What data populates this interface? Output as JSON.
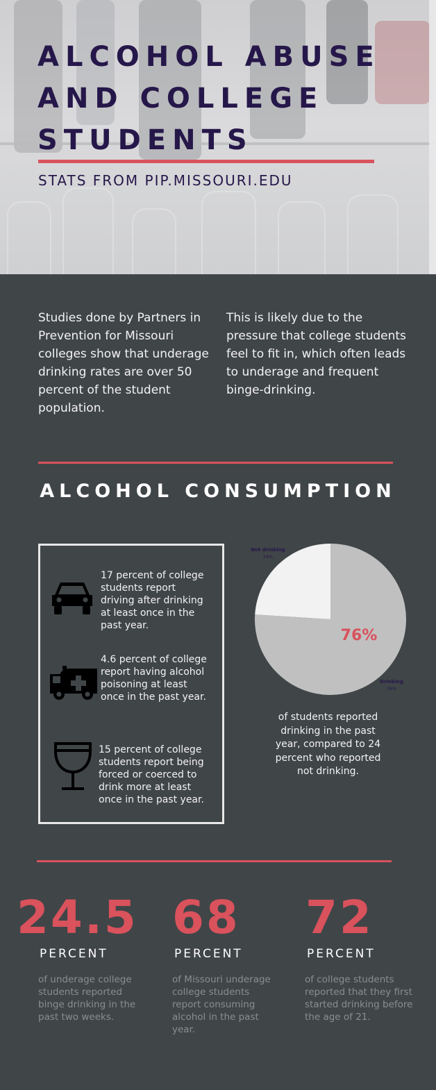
{
  "header": {
    "title": "ALCOHOL ABUSE AND COLLEGE STUDENTS",
    "subtitle": "STATS FROM PIP.MISSOURI.EDU"
  },
  "intro": {
    "left": "Studies done by Partners in Prevention for Missouri colleges show that underage drinking rates are over 50 percent of the student population.",
    "right": "This is likely due to the pressure that college students feel to fit in, which often leads to underage and frequent binge-drinking."
  },
  "consumption": {
    "title": "ALCOHOL CONSUMPTION",
    "stats": [
      {
        "icon": "car-icon",
        "text": "17 percent of college students report driving after drinking at least once in the past year."
      },
      {
        "icon": "ambulance-icon",
        "text": "4.6 percent of college report having alcohol poisoning at least once in the past year."
      },
      {
        "icon": "wine-glass-icon",
        "text": "15 percent of college students report being forced or coerced to drink more at least once in the past year."
      }
    ],
    "pie_caption": "of students reported drinking in the past year, compared to 24 percent who reported not drinking.",
    "pie_center_label": "76%"
  },
  "chart_data": {
    "type": "pie",
    "title": "",
    "slices": [
      {
        "label": "Drinking",
        "value": 76,
        "value_label": "76%",
        "color": "#c0c0c0"
      },
      {
        "label": "Not drinking",
        "value": 24,
        "value_label": "24%",
        "color": "#f2f2f2"
      }
    ]
  },
  "big_stats": [
    {
      "number": "24.5",
      "unit": "PERCENT",
      "desc": "of underage college students reported binge drinking in the past two weeks."
    },
    {
      "number": "68",
      "unit": "PERCENT",
      "desc": "of Missouri underage college students report consuming alcohol in the past year."
    },
    {
      "number": "72",
      "unit": "PERCENT",
      "desc": "of college students reported that they first started drinking before the age of 21."
    }
  ],
  "colors": {
    "accent": "#d9525c",
    "title_text": "#26174a",
    "background": "#404548",
    "muted_text": "#8a8e90"
  }
}
